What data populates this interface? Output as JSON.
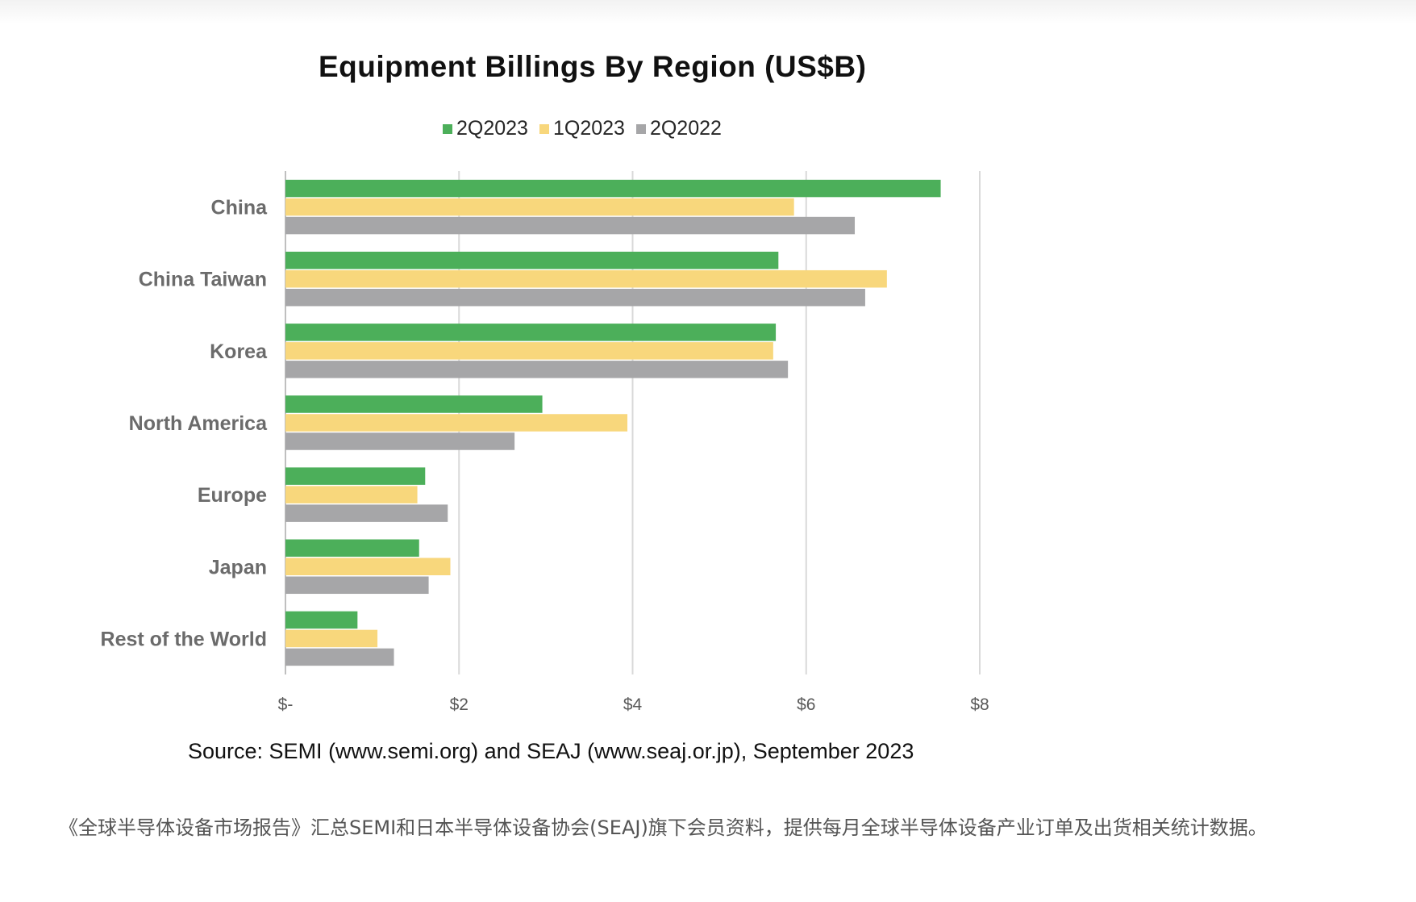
{
  "chart_data": {
    "type": "bar",
    "orientation": "horizontal",
    "title": "Equipment Billings By Region (US$B)",
    "categories": [
      "China",
      "China Taiwan",
      "Korea",
      "North America",
      "Europe",
      "Japan",
      "Rest of the World"
    ],
    "series": [
      {
        "name": "2Q2023",
        "color": "#4caf5a",
        "values": [
          7.55,
          5.68,
          5.65,
          2.96,
          1.61,
          1.54,
          0.83
        ]
      },
      {
        "name": "1Q2023",
        "color": "#f8d77c",
        "values": [
          5.86,
          6.93,
          5.62,
          3.94,
          1.52,
          1.9,
          1.06
        ]
      },
      {
        "name": "2Q2022",
        "color": "#a6a6a8",
        "values": [
          6.56,
          6.68,
          5.79,
          2.64,
          1.87,
          1.65,
          1.25
        ]
      }
    ],
    "xlim": [
      0,
      8
    ],
    "xticks": [
      0,
      2,
      4,
      6,
      8
    ],
    "xtick_labels": [
      "$-",
      "$2",
      "$4",
      "$6",
      "$8"
    ],
    "grid": "vertical",
    "legend": "top"
  },
  "source": "Source: SEMI (www.semi.org) and SEAJ (www.seaj.or.jp), September 2023",
  "caption": "《全球半导体设备市场报告》汇总SEMI和日本半导体设备协会(SEAJ)旗下会员资料，提供每月全球半导体设备产业订单及出货相关统计数据。"
}
